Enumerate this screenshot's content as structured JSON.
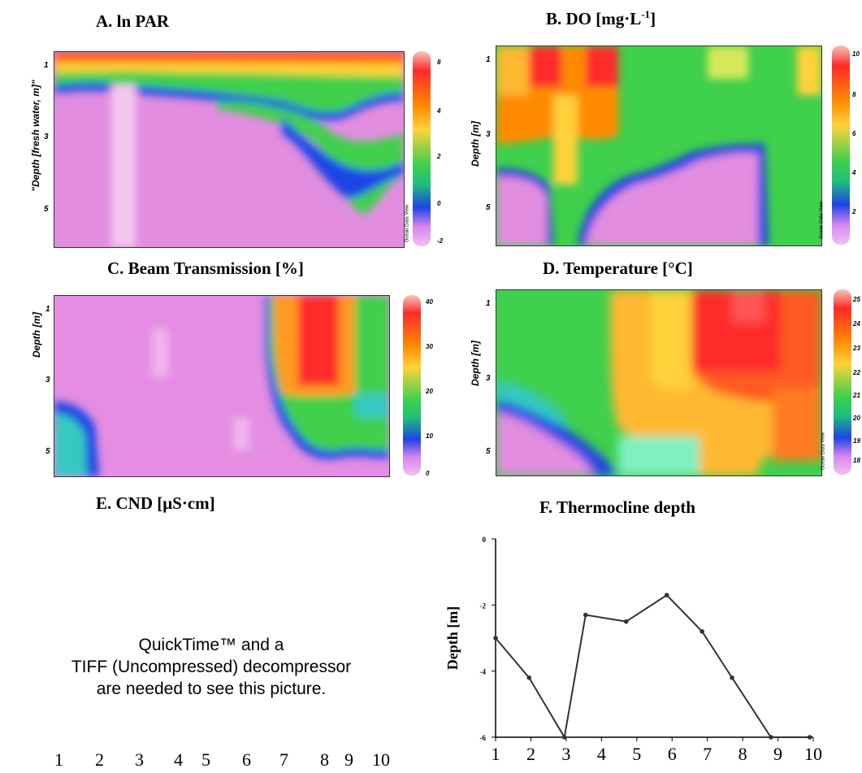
{
  "panels": {
    "a": {
      "title": "A. ln PAR",
      "ylabel": "\"Depth [fresh water, m]\"",
      "yticks": [
        "1",
        "3",
        "5"
      ],
      "cbticks": [
        "8",
        "4",
        "2",
        "0",
        "-2"
      ]
    },
    "b": {
      "title_main": "B. DO [mg",
      "title_dot": "·",
      "title_unit": "L",
      "title_sup": "-1",
      "title_end": "]",
      "ylabel": "Depth [m]",
      "yticks": [
        "1",
        "3",
        "5"
      ],
      "cbticks": [
        "10",
        "8",
        "6",
        "4",
        "2"
      ]
    },
    "c": {
      "title": "C. Beam Transmission [%]",
      "ylabel": "Depth [m]",
      "yticks": [
        "1",
        "3",
        "5"
      ],
      "cbticks": [
        "40",
        "30",
        "20",
        "10",
        "0"
      ]
    },
    "d": {
      "title": "D. Temperature [°C]",
      "ylabel": "Depth [m]",
      "yticks": [
        "1",
        "3",
        "5"
      ],
      "cbticks": [
        "25",
        "24",
        "23",
        "22",
        "21",
        "20",
        "19",
        "18"
      ]
    },
    "e": {
      "title": "E. CND [μS·cm]",
      "placeholder_lines": [
        "QuickTime™ and a",
        "TIFF (Uncompressed) decompressor",
        "are needed to see this picture."
      ],
      "xticks": [
        "1",
        "2",
        "3",
        "4",
        "5",
        "6",
        "7",
        "8",
        "9",
        "10"
      ]
    },
    "odv": "Ocean Data View"
  },
  "chart_data": [
    {
      "type": "line",
      "title": "F. Thermocline depth",
      "ylabel": "Depth [m]",
      "xlabel": "",
      "xticks": [
        "1",
        "2",
        "3",
        "4",
        "5",
        "6",
        "7",
        "8",
        "9",
        "10"
      ],
      "yticks": [
        "0",
        "-2",
        "-4",
        "-6"
      ],
      "ylim": [
        -6,
        0
      ],
      "xlim": [
        1,
        10
      ],
      "x": [
        1,
        1.95,
        2.95,
        3.55,
        4.7,
        5.85,
        6.85,
        7.7,
        8.8,
        9.9
      ],
      "y": [
        -3.0,
        -4.2,
        -6.0,
        -2.3,
        -2.5,
        -1.7,
        -2.8,
        -4.2,
        -6.0,
        -6.0
      ],
      "grid": false,
      "legend": "none"
    }
  ]
}
